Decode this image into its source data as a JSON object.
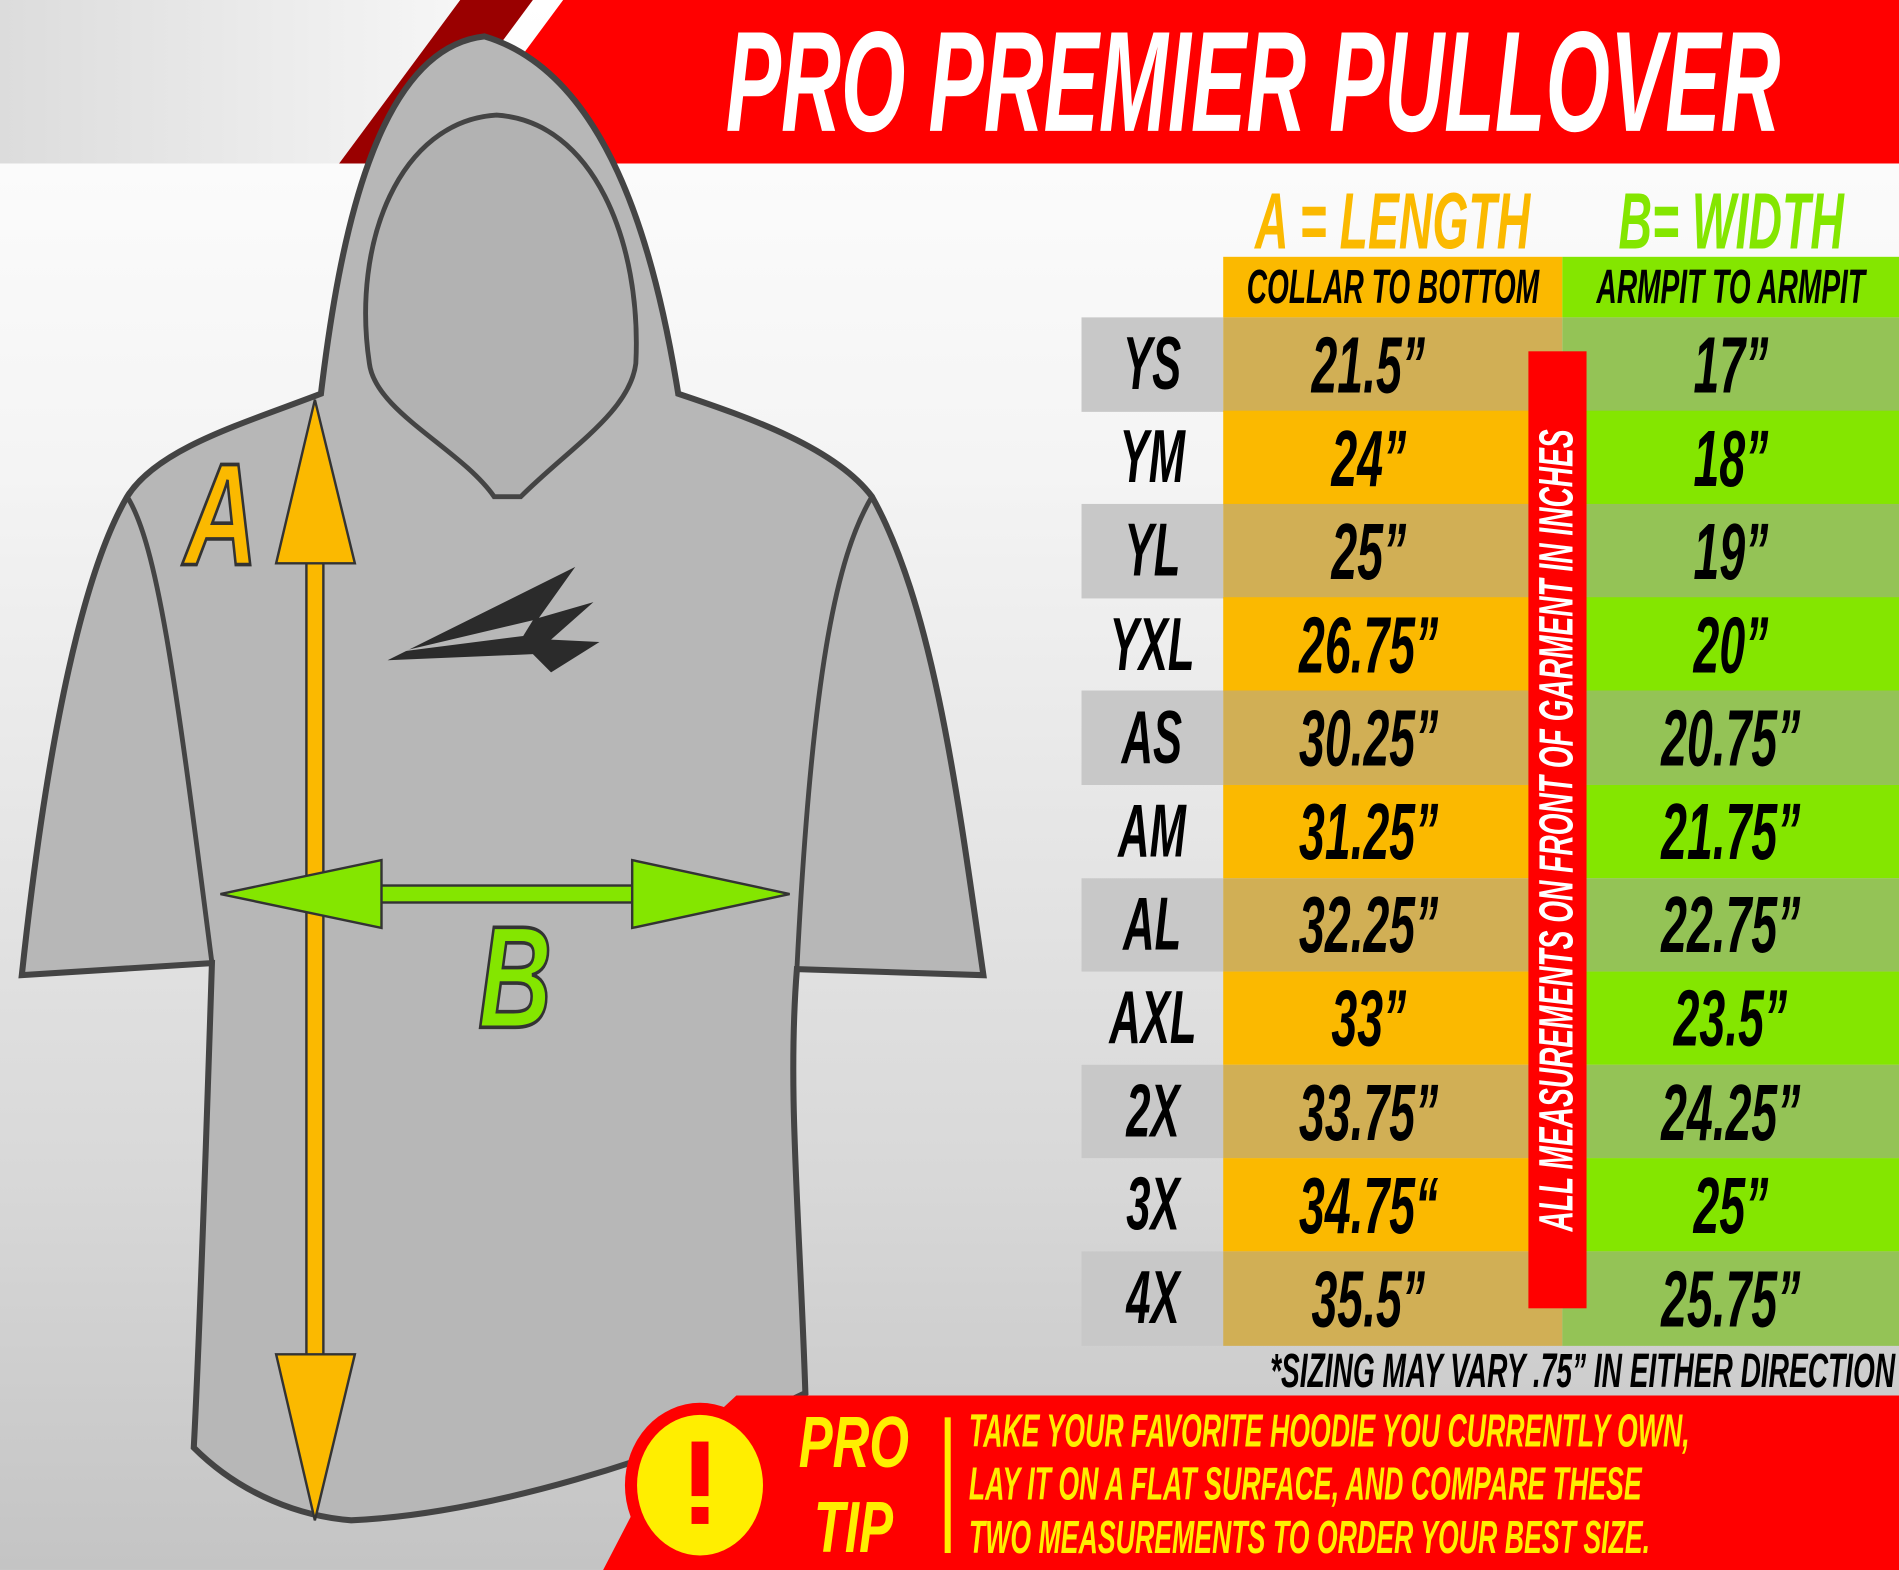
{
  "title": "PRO PREMIER PULLOVER",
  "headers": {
    "a_title": "A = LENGTH",
    "a_subtitle": "COLLAR TO BOTTOM",
    "b_title": "B= WIDTH",
    "b_subtitle": "ARMPIT TO ARMPIT"
  },
  "diagram_labels": {
    "a": "A",
    "b": "B"
  },
  "side_label": "ALL MEASUREMENTS ON FRONT OF GARMENT IN INCHES",
  "rows": [
    {
      "size": "YS",
      "length": "21.5”",
      "width": "17”"
    },
    {
      "size": "YM",
      "length": "24”",
      "width": "18”"
    },
    {
      "size": "YL",
      "length": "25”",
      "width": "19”"
    },
    {
      "size": "YXL",
      "length": "26.75”",
      "width": "20”"
    },
    {
      "size": "AS",
      "length": "30.25”",
      "width": "20.75”"
    },
    {
      "size": "AM",
      "length": "31.25”",
      "width": "21.75”"
    },
    {
      "size": "AL",
      "length": "32.25”",
      "width": "22.75”"
    },
    {
      "size": "AXL",
      "length": "33”",
      "width": "23.5”"
    },
    {
      "size": "2X",
      "length": "33.75”",
      "width": "24.25”"
    },
    {
      "size": "3X",
      "length": "34.75“",
      "width": "25”"
    },
    {
      "size": "4X",
      "length": "35.5”",
      "width": "25.75”"
    }
  ],
  "note": "*SIZING MAY VARY .75” IN EITHER DIRECTION",
  "pro_tip": {
    "icon": "exclamation-icon",
    "label_line1": "PRO",
    "label_line2": "TIP",
    "lines": [
      "TAKE YOUR FAVORITE HOODIE YOU CURRENTLY OWN,",
      "LAY IT ON A FLAT SURFACE, AND COMPARE THESE",
      "TWO MEASUREMENTS TO ORDER YOUR BEST SIZE."
    ]
  },
  "colors": {
    "red": "#ff0000",
    "length_yellow": "#fbb900",
    "width_green": "#84e600",
    "length_dim": "#d1af55",
    "width_dim": "#94c356",
    "tip_yellow": "#ffee00"
  }
}
